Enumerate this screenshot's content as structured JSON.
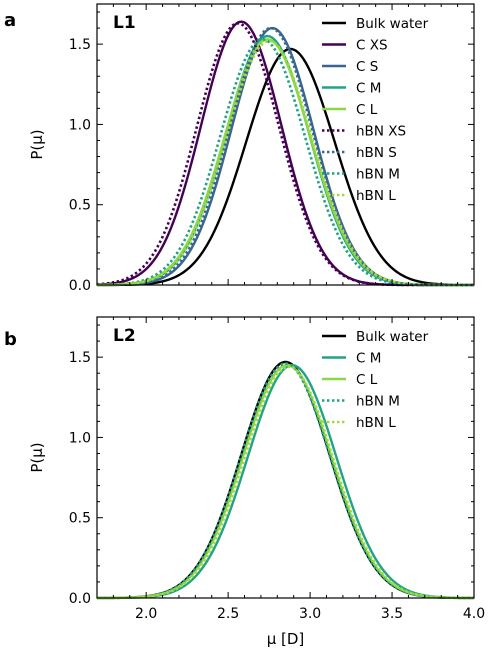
{
  "chart_data": [
    {
      "type": "line",
      "panel_letter": "a",
      "title": "L1",
      "xlabel": "",
      "ylabel": "P(μ)",
      "xlim": [
        1.7,
        4.0
      ],
      "ylim": [
        0.0,
        1.75
      ],
      "xticks": [],
      "yticks": [
        "0.0",
        "0.5",
        "1.0",
        "1.5"
      ],
      "grid": false,
      "legend_position": "top-right",
      "series": [
        {
          "name": "Bulk water",
          "color": "#000000",
          "dash": false,
          "mu": 2.88,
          "sigma": 0.27,
          "peak": 1.47
        },
        {
          "name": "C XS",
          "color": "#440154",
          "dash": false,
          "mu": 2.58,
          "sigma": 0.245,
          "peak": 1.64
        },
        {
          "name": "C S",
          "color": "#3b6594",
          "dash": false,
          "mu": 2.77,
          "sigma": 0.25,
          "peak": 1.6
        },
        {
          "name": "C M",
          "color": "#21a486",
          "dash": false,
          "mu": 2.74,
          "sigma": 0.255,
          "peak": 1.55
        },
        {
          "name": "C L",
          "color": "#8bd646",
          "dash": false,
          "mu": 2.74,
          "sigma": 0.26,
          "peak": 1.53
        },
        {
          "name": "hBN XS",
          "color": "#440154",
          "dash": true,
          "mu": 2.56,
          "sigma": 0.25,
          "peak": 1.63
        },
        {
          "name": "hBN S",
          "color": "#31688e",
          "dash": true,
          "mu": 2.76,
          "sigma": 0.252,
          "peak": 1.6
        },
        {
          "name": "hBN M",
          "color": "#1fa187",
          "dash": true,
          "mu": 2.71,
          "sigma": 0.258,
          "peak": 1.53
        },
        {
          "name": "hBN L",
          "color": "#a0da39",
          "dash": true,
          "mu": 2.75,
          "sigma": 0.26,
          "peak": 1.52
        }
      ]
    },
    {
      "type": "line",
      "panel_letter": "b",
      "title": "L2",
      "xlabel": "μ [D]",
      "ylabel": "P(μ)",
      "xlim": [
        1.7,
        4.0
      ],
      "ylim": [
        0.0,
        1.75
      ],
      "xticks": [
        "2.0",
        "2.5",
        "3.0",
        "3.5",
        "4.0"
      ],
      "yticks": [
        "0.0",
        "0.5",
        "1.0",
        "1.5"
      ],
      "grid": false,
      "legend_position": "top-right",
      "series": [
        {
          "name": "Bulk water",
          "color": "#000000",
          "dash": false,
          "mu": 2.85,
          "sigma": 0.27,
          "peak": 1.47
        },
        {
          "name": "C M",
          "color": "#21a486",
          "dash": false,
          "mu": 2.89,
          "sigma": 0.27,
          "peak": 1.45
        },
        {
          "name": "C L",
          "color": "#8bd646",
          "dash": false,
          "mu": 2.86,
          "sigma": 0.27,
          "peak": 1.45
        },
        {
          "name": "hBN M",
          "color": "#1fa187",
          "dash": true,
          "mu": 2.85,
          "sigma": 0.27,
          "peak": 1.46
        },
        {
          "name": "hBN L",
          "color": "#a0da39",
          "dash": true,
          "mu": 2.87,
          "sigma": 0.27,
          "peak": 1.44
        }
      ]
    }
  ]
}
